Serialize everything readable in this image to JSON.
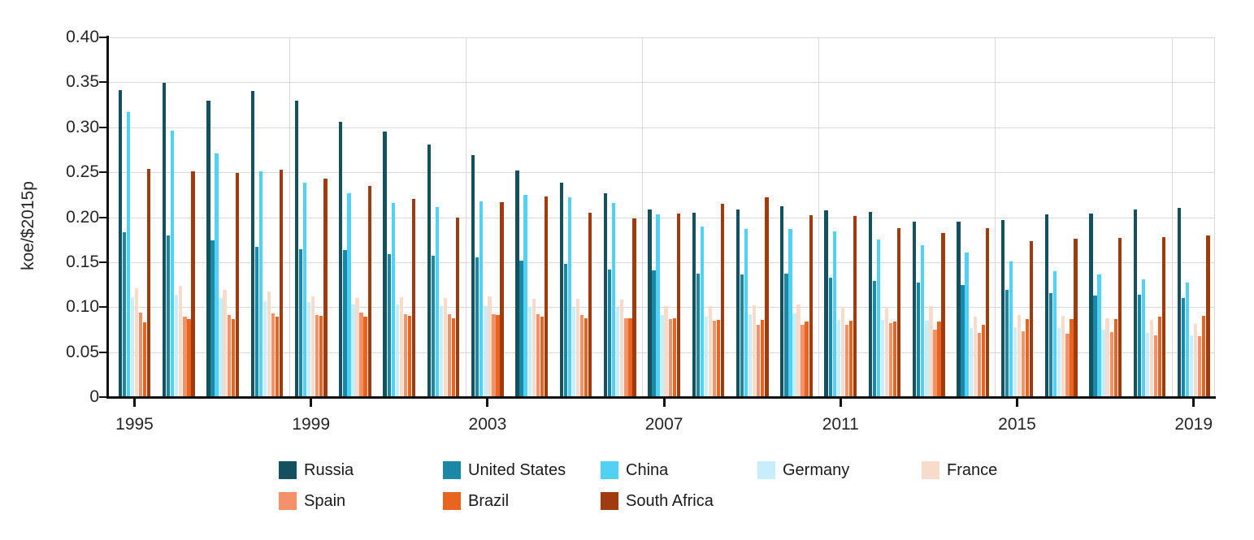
{
  "chart_data": {
    "type": "bar",
    "title": "",
    "ylabel": "koe/$2015p",
    "xlabel": "",
    "ylim": [
      0,
      0.4
    ],
    "grid": true,
    "legend_position": "bottom",
    "y_ticks": [
      {
        "value": 0,
        "label": "0"
      },
      {
        "value": 0.05,
        "label": "0.05"
      },
      {
        "value": 0.1,
        "label": "0.10"
      },
      {
        "value": 0.15,
        "label": "0.15"
      },
      {
        "value": 0.2,
        "label": "0.20"
      },
      {
        "value": 0.25,
        "label": "0.25"
      },
      {
        "value": 0.3,
        "label": "0.30"
      },
      {
        "value": 0.35,
        "label": "0.35"
      },
      {
        "value": 0.4,
        "label": "0.40"
      }
    ],
    "x_labeled_years": [
      1995,
      1999,
      2003,
      2007,
      2011,
      2015,
      2019
    ],
    "years": [
      1995,
      1996,
      1997,
      1998,
      1999,
      2000,
      2001,
      2002,
      2003,
      2004,
      2005,
      2006,
      2007,
      2008,
      2009,
      2010,
      2011,
      2012,
      2013,
      2014,
      2015,
      2016,
      2017,
      2018,
      2019
    ],
    "series": [
      {
        "name": "Russia",
        "color": "#15505f",
        "values": [
          0.341,
          0.349,
          0.33,
          0.34,
          0.33,
          0.306,
          0.295,
          0.281,
          0.269,
          0.252,
          0.238,
          0.227,
          0.209,
          0.205,
          0.209,
          0.212,
          0.208,
          0.206,
          0.195,
          0.195,
          0.197,
          0.203,
          0.204,
          0.209,
          0.21
        ]
      },
      {
        "name": "United States",
        "color": "#1b89a5",
        "values": [
          0.183,
          0.18,
          0.174,
          0.167,
          0.164,
          0.163,
          0.159,
          0.157,
          0.155,
          0.152,
          0.148,
          0.142,
          0.141,
          0.137,
          0.136,
          0.137,
          0.133,
          0.129,
          0.127,
          0.125,
          0.119,
          0.116,
          0.113,
          0.114,
          0.11
        ]
      },
      {
        "name": "China",
        "color": "#4fd2f4",
        "values": [
          0.317,
          0.296,
          0.271,
          0.251,
          0.238,
          0.227,
          0.216,
          0.211,
          0.218,
          0.225,
          0.222,
          0.216,
          0.203,
          0.19,
          0.187,
          0.187,
          0.184,
          0.175,
          0.169,
          0.161,
          0.151,
          0.14,
          0.136,
          0.131,
          0.127
        ]
      },
      {
        "name": "Germany",
        "color": "#c7effb",
        "values": [
          0.111,
          0.114,
          0.11,
          0.107,
          0.106,
          0.103,
          0.103,
          0.101,
          0.101,
          0.1,
          0.099,
          0.099,
          0.091,
          0.089,
          0.092,
          0.093,
          0.086,
          0.086,
          0.085,
          0.077,
          0.078,
          0.077,
          0.075,
          0.071,
          0.069
        ]
      },
      {
        "name": "France",
        "color": "#f8dcc9",
        "values": [
          0.121,
          0.124,
          0.119,
          0.117,
          0.112,
          0.11,
          0.111,
          0.11,
          0.112,
          0.109,
          0.109,
          0.108,
          0.101,
          0.101,
          0.102,
          0.103,
          0.1,
          0.1,
          0.101,
          0.089,
          0.091,
          0.09,
          0.088,
          0.086,
          0.081
        ]
      },
      {
        "name": "Spain",
        "color": "#f2916a",
        "values": [
          0.094,
          0.089,
          0.091,
          0.093,
          0.091,
          0.094,
          0.092,
          0.092,
          0.092,
          0.092,
          0.091,
          0.088,
          0.087,
          0.085,
          0.08,
          0.08,
          0.08,
          0.082,
          0.075,
          0.071,
          0.073,
          0.07,
          0.072,
          0.069,
          0.068
        ]
      },
      {
        "name": "Brazil",
        "color": "#e9641f",
        "values": [
          0.083,
          0.087,
          0.087,
          0.089,
          0.09,
          0.089,
          0.09,
          0.088,
          0.091,
          0.089,
          0.088,
          0.088,
          0.088,
          0.086,
          0.086,
          0.084,
          0.085,
          0.084,
          0.084,
          0.08,
          0.087,
          0.087,
          0.087,
          0.089,
          0.09
        ]
      },
      {
        "name": "South Africa",
        "color": "#a03b10",
        "values": [
          0.254,
          0.251,
          0.249,
          0.253,
          0.243,
          0.235,
          0.22,
          0.2,
          0.217,
          0.223,
          0.205,
          0.199,
          0.204,
          0.215,
          0.222,
          0.202,
          0.201,
          0.188,
          0.182,
          0.188,
          0.173,
          0.176,
          0.177,
          0.178,
          0.18
        ]
      }
    ]
  }
}
